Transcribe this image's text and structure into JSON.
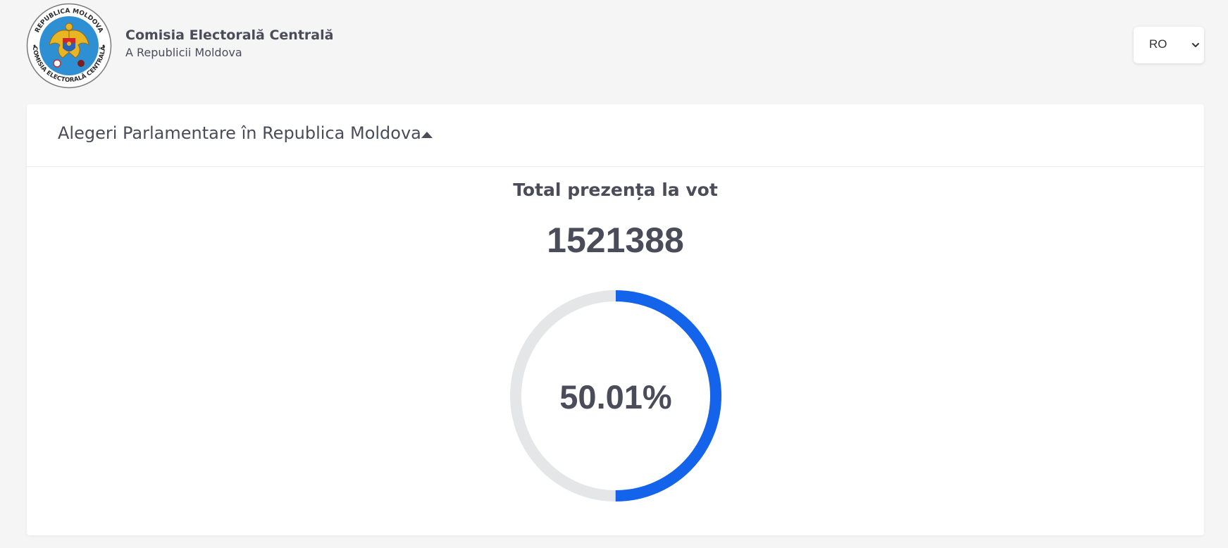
{
  "header": {
    "logo": {
      "ring_text_top": "REPUBLICA MOLDOVA",
      "ring_text_bottom": "COMISIA ELECTORALĂ CENTRALĂ",
      "icon": "moldova-coat-of-arms"
    },
    "title": "Comisia Electorală Centrală",
    "subtitle": "A Republicii Moldova",
    "language": {
      "selected": "RO"
    }
  },
  "panel": {
    "title": "Alegeri Parlamentare în Republica Moldova",
    "expanded": true,
    "turnout_label": "Total prezența la vot",
    "turnout_total": "1521388",
    "turnout_percent_label": "50.01%",
    "turnout_fraction": 0.5001
  },
  "colors": {
    "background": "#f5f5f5",
    "card": "#ffffff",
    "text": "#4b4c5a",
    "gauge_fill": "#1463eb",
    "gauge_track": "#e5e6e8"
  }
}
